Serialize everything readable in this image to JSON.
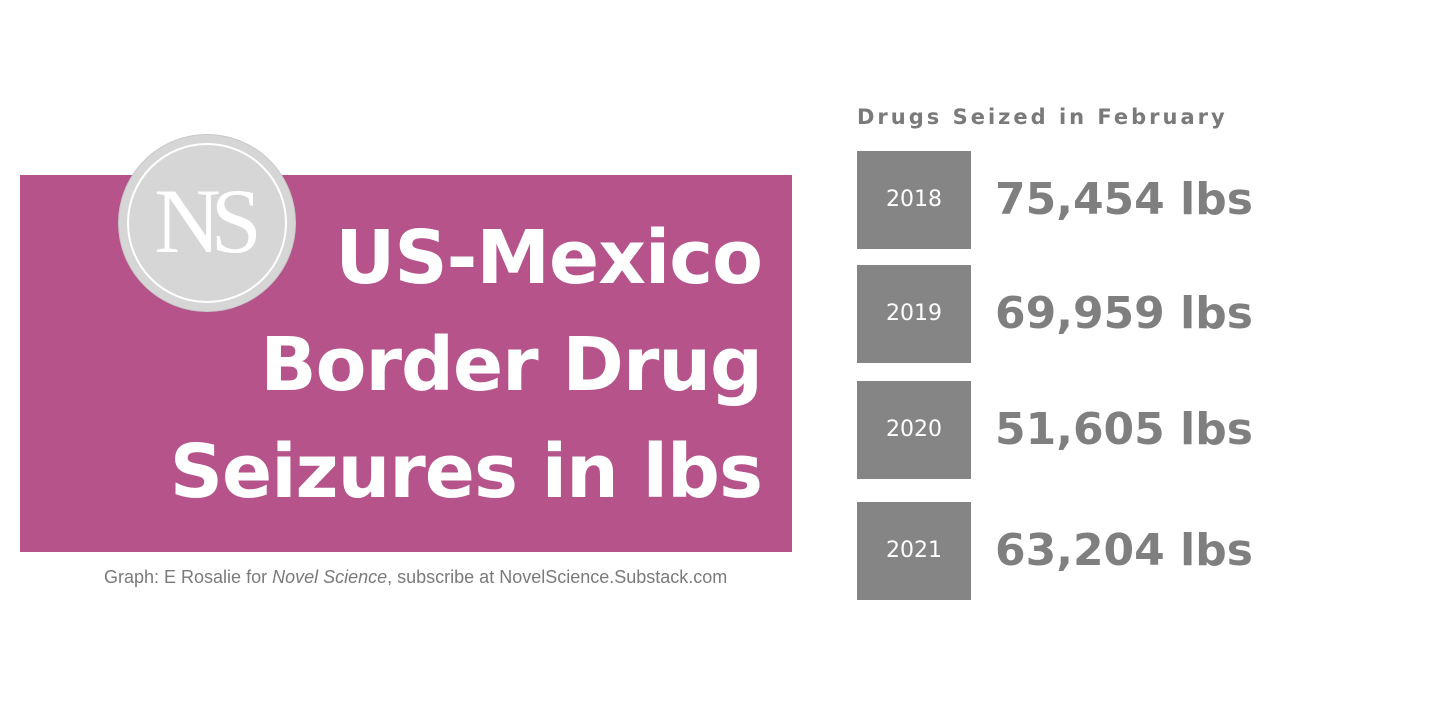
{
  "headline": {
    "line1": "US-Mexico",
    "line2": "Border Drug",
    "line3": "Seizures in lbs"
  },
  "logo": {
    "text": "NS",
    "background_color": "#d6d6d6"
  },
  "credit": {
    "prefix": "Graph: E Rosalie for ",
    "publication": "Novel Science",
    "suffix": ", subscribe at NovelScience.Substack.com"
  },
  "colors": {
    "banner": "#b5538a",
    "year_box": "#858585",
    "value_text": "#7f7f7f"
  },
  "chart_data": {
    "type": "table",
    "title": "Drugs Seized in February",
    "categories": [
      "2018",
      "2019",
      "2020",
      "2021"
    ],
    "values": [
      75454,
      69959,
      51605,
      63204
    ],
    "value_labels": [
      "75,454 lbs",
      "69,959 lbs",
      "51,605 lbs",
      "63,204 lbs"
    ],
    "unit": "lbs"
  }
}
